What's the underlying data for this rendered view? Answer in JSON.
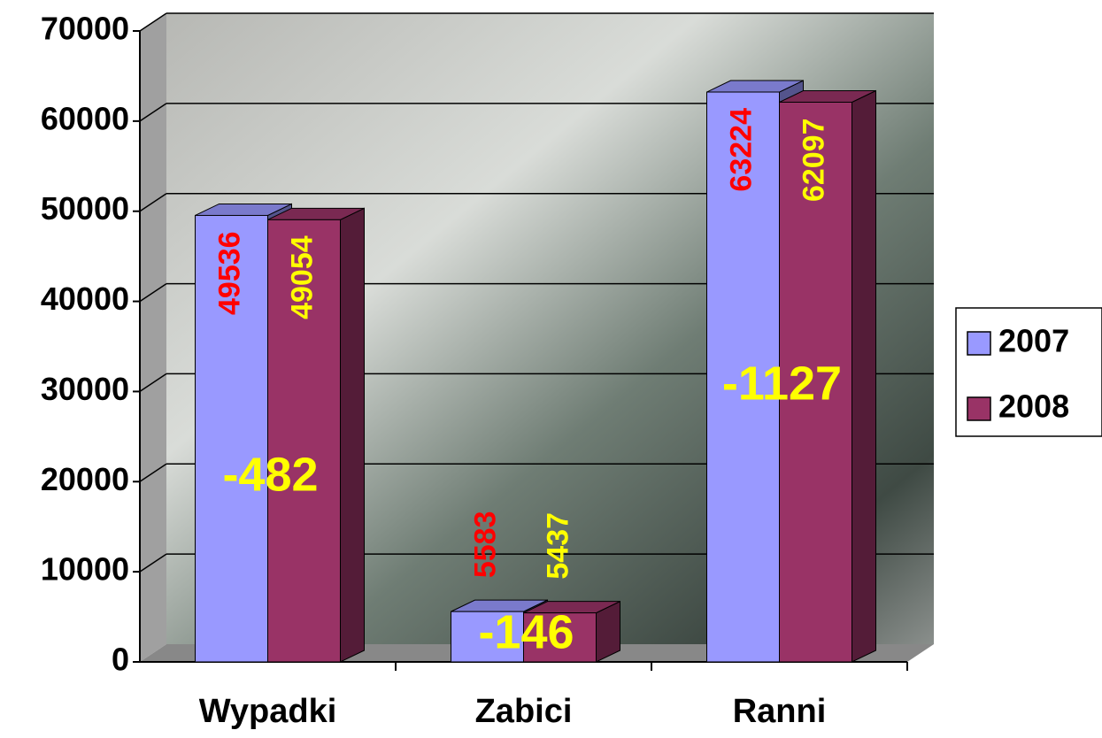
{
  "chart_data": {
    "type": "bar3d",
    "categories": [
      "Wypadki",
      "Zabici",
      "Ranni"
    ],
    "series": [
      {
        "name": "2007",
        "color": "#9999ff",
        "values": [
          49536,
          5583,
          63224
        ]
      },
      {
        "name": "2008",
        "color": "#993366",
        "values": [
          49054,
          5437,
          62097
        ]
      }
    ],
    "label_colors": [
      "#ff0000",
      "#ffff00"
    ],
    "annotations": [
      "-482",
      "-146",
      "-1127"
    ],
    "ylim": [
      0,
      70000
    ],
    "yticks": [
      0,
      10000,
      20000,
      30000,
      40000,
      50000,
      60000,
      70000
    ],
    "grid": true,
    "legend": "right"
  }
}
